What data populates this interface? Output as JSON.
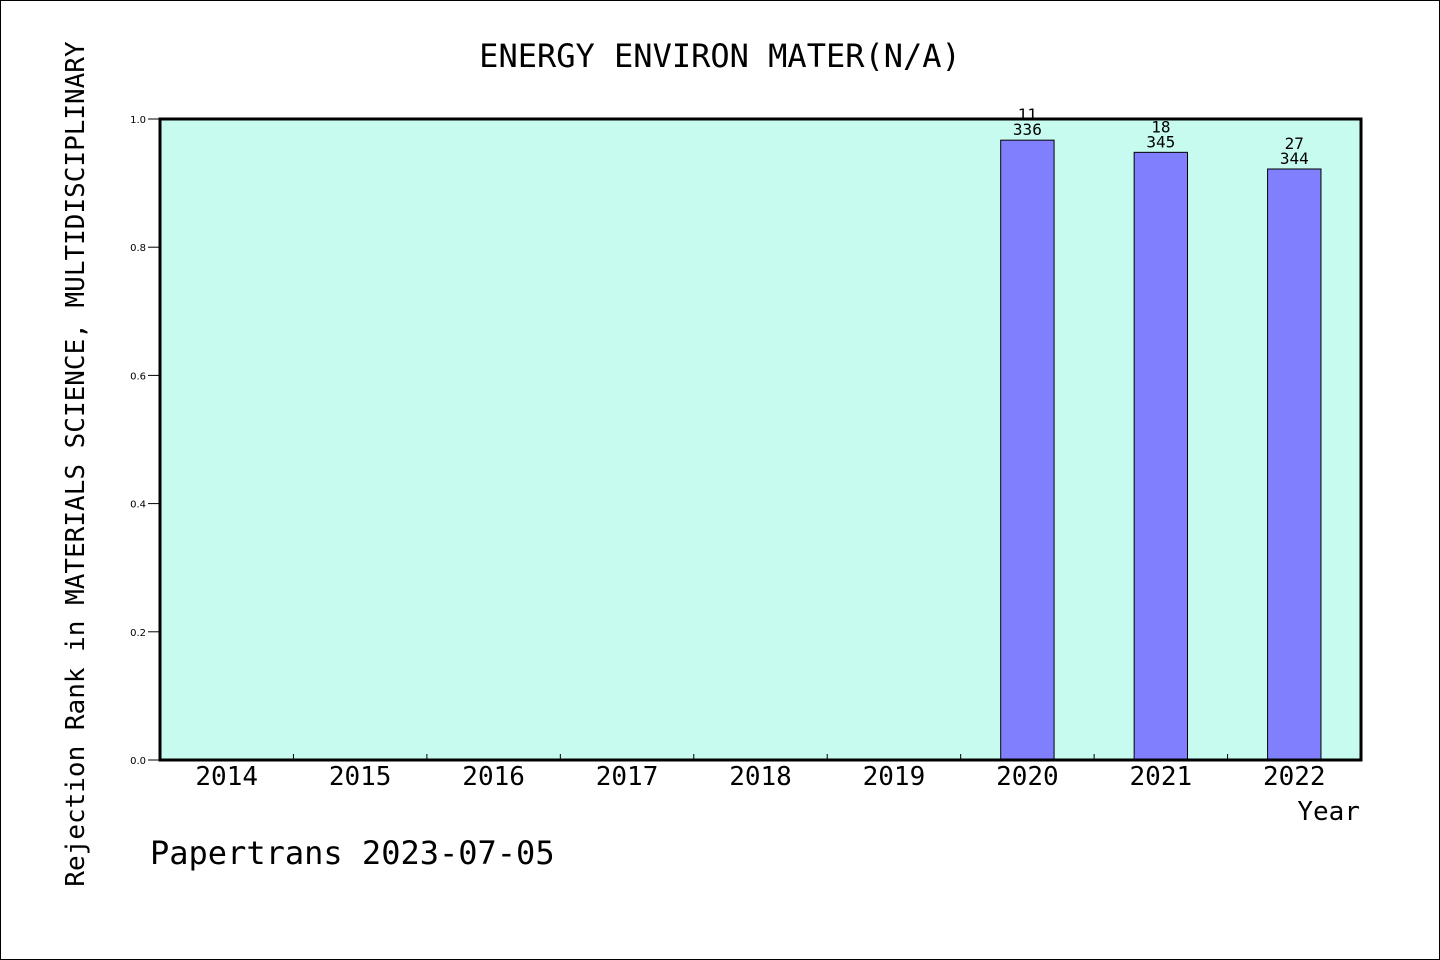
{
  "chart_data": {
    "type": "bar",
    "title": "ENERGY ENVIRON MATER(N/A)",
    "xlabel": "Year",
    "ylabel": "Rejection Rank in MATERIALS SCIENCE, MULTIDISCIPLINARY",
    "categories": [
      "2014",
      "2015",
      "2016",
      "2017",
      "2018",
      "2019",
      "2020",
      "2021",
      "2022"
    ],
    "values": [
      null,
      null,
      null,
      null,
      null,
      null,
      0.967,
      0.948,
      0.922
    ],
    "bar_labels_top": [
      "",
      "",
      "",
      "",
      "",
      "",
      "11",
      "18",
      "27"
    ],
    "bar_labels_bottom": [
      "",
      "",
      "",
      "",
      "",
      "",
      "336",
      "345",
      "344"
    ],
    "ylim": [
      0,
      1.0
    ],
    "yticks": [
      "0.0",
      "0.2",
      "0.4",
      "0.6",
      "0.8",
      "1.0"
    ],
    "grid": false,
    "colors": {
      "plot_background": "#c8fbef",
      "bar_fill": "#8080ff",
      "bar_stroke": "#000000"
    }
  },
  "footer": {
    "note": "Papertrans 2023-07-05"
  }
}
